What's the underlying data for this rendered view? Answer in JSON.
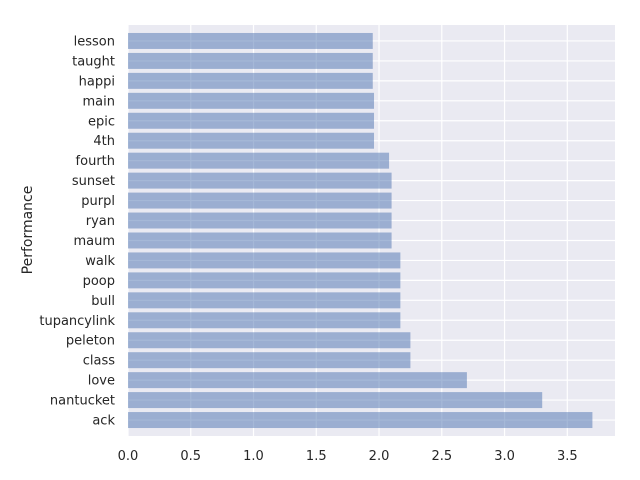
{
  "chart_data": {
    "type": "bar",
    "orientation": "horizontal",
    "ylabel": "Performance",
    "xlabel": "",
    "categories": [
      "ack",
      "nantucket",
      "love",
      "class",
      "peleton",
      "tupancylink",
      "bull",
      "poop",
      "walk",
      "maum",
      "ryan",
      "purpl",
      "sunset",
      "fourth",
      "4th",
      "epic",
      "main",
      "happi",
      "taught",
      "lesson"
    ],
    "values": [
      3.7,
      3.3,
      2.7,
      2.25,
      2.25,
      2.17,
      2.17,
      2.17,
      2.17,
      2.1,
      2.1,
      2.1,
      2.1,
      2.08,
      1.96,
      1.96,
      1.96,
      1.95,
      1.95,
      1.95
    ],
    "xlim": [
      0,
      3.88
    ],
    "xticks": [
      "0.0",
      "0.5",
      "1.0",
      "1.5",
      "2.0",
      "2.5",
      "3.0",
      "3.5"
    ],
    "grid": true,
    "colors": {
      "bar": "#4c72b0",
      "background": "#eaeaf2",
      "grid": "#ffffff"
    }
  }
}
